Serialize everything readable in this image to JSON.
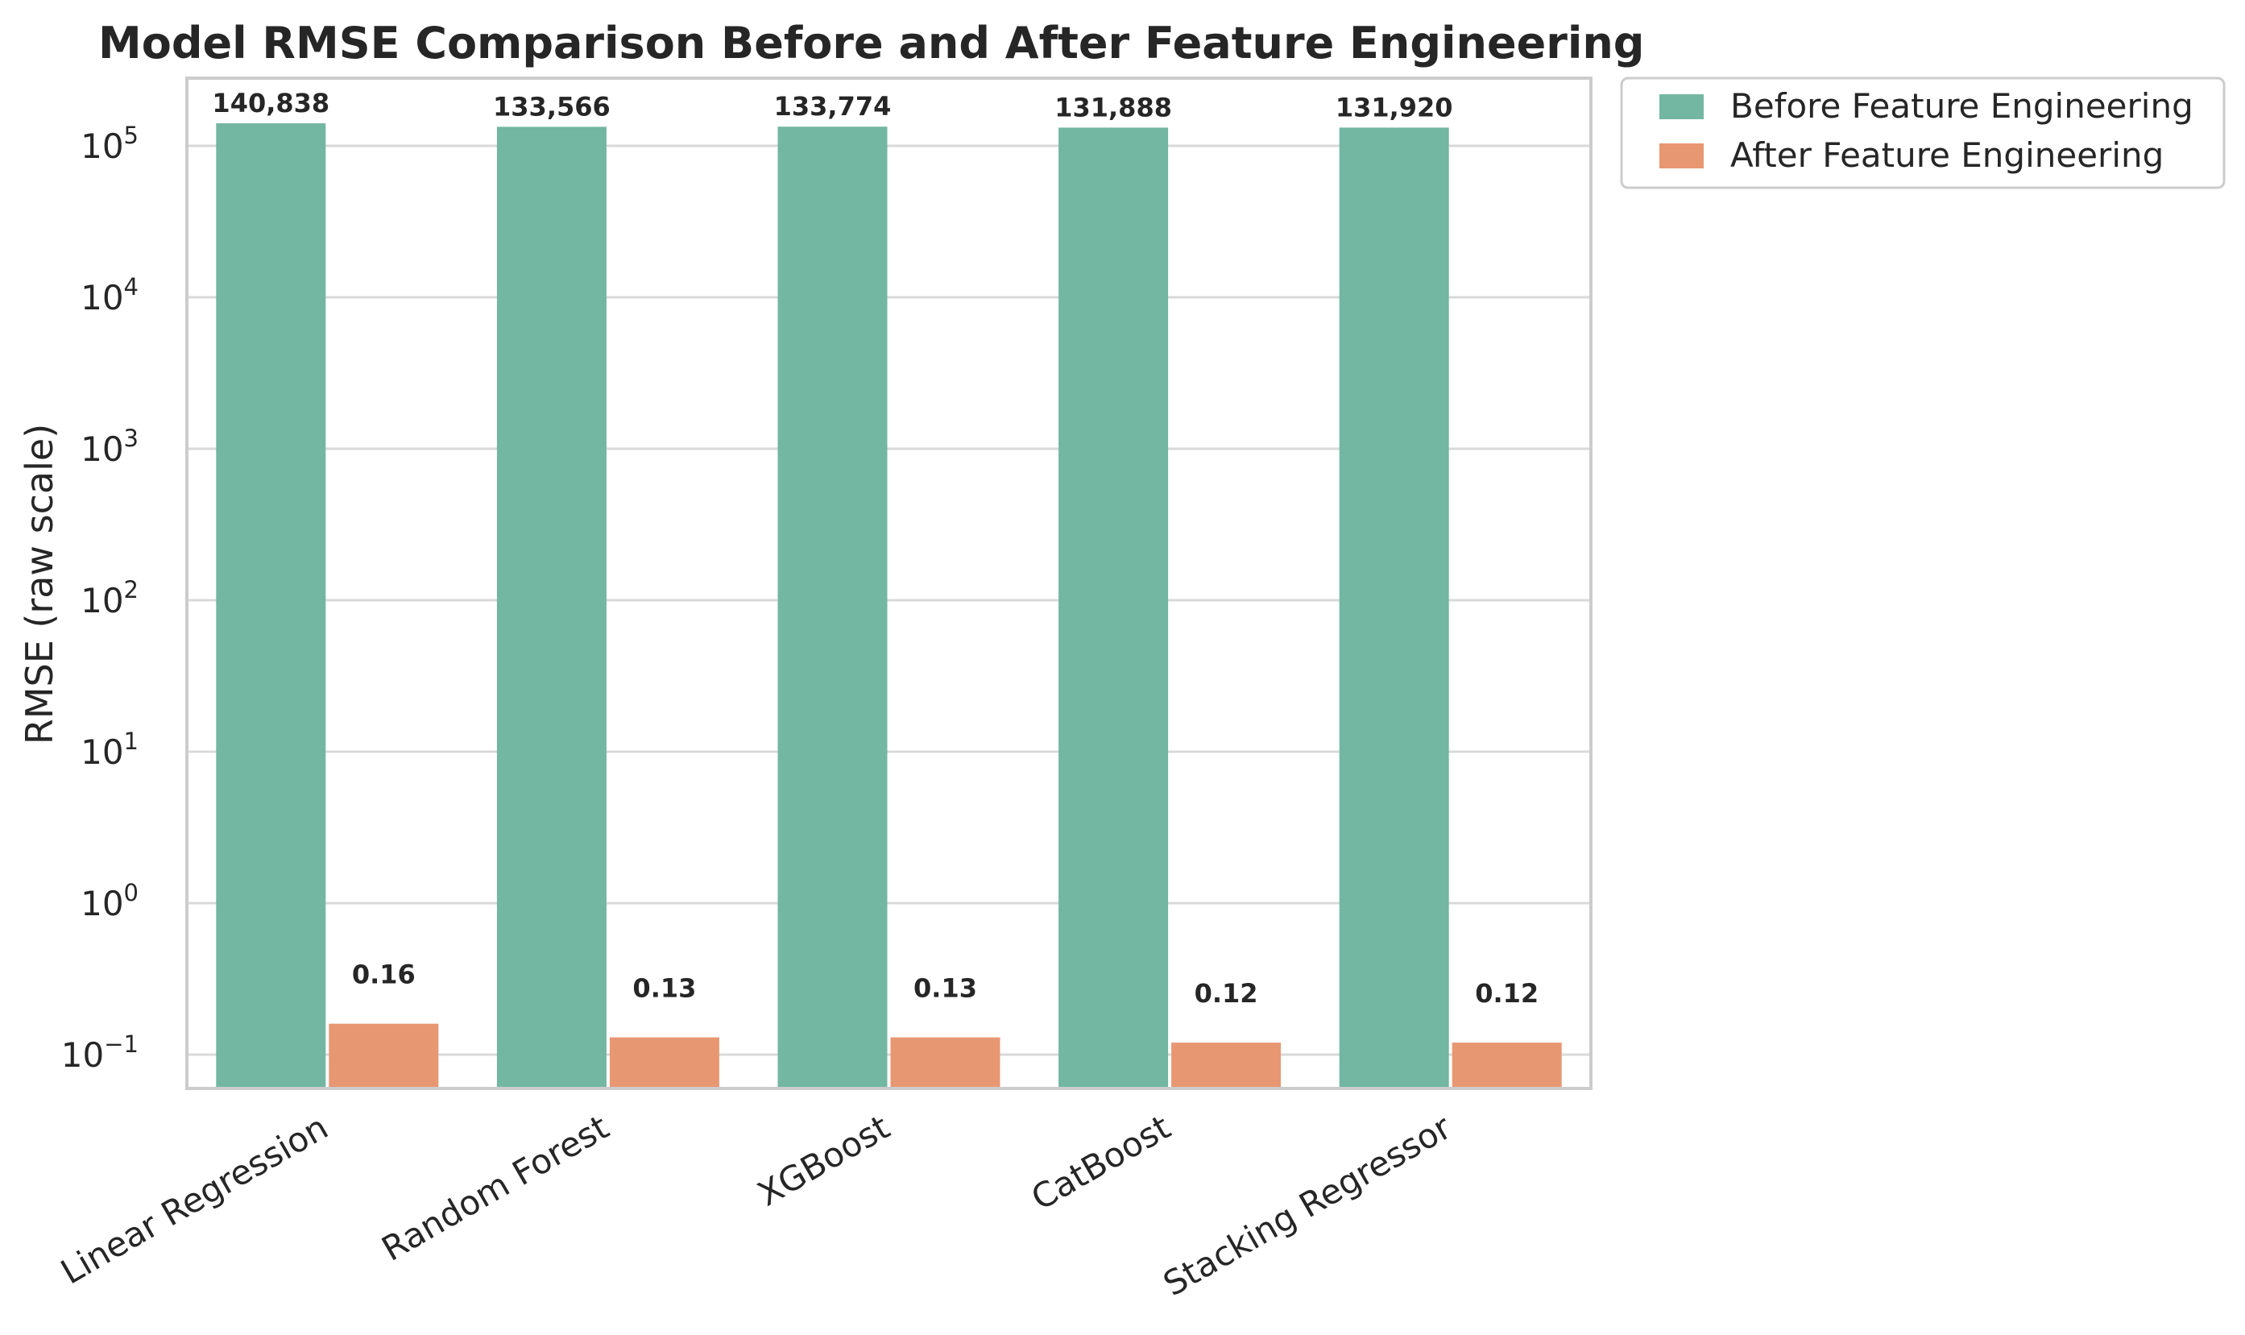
{
  "chart_data": {
    "type": "bar",
    "title": "Model RMSE Comparison Before and After Feature Engineering",
    "xlabel": "",
    "ylabel": "RMSE (raw scale)",
    "yscale": "log",
    "ylim": [
      0.058,
      250000
    ],
    "yticks": [
      {
        "value": 0.1,
        "base": "10",
        "exp": "−1"
      },
      {
        "value": 1,
        "base": "10",
        "exp": "0"
      },
      {
        "value": 10,
        "base": "10",
        "exp": "1"
      },
      {
        "value": 100,
        "base": "10",
        "exp": "2"
      },
      {
        "value": 1000,
        "base": "10",
        "exp": "3"
      },
      {
        "value": 10000,
        "base": "10",
        "exp": "4"
      },
      {
        "value": 100000,
        "base": "10",
        "exp": "5"
      }
    ],
    "grid": true,
    "categories": [
      "Linear Regression",
      "Random Forest",
      "XGBoost",
      "CatBoost",
      "Stacking Regressor"
    ],
    "series": [
      {
        "name": "Before Feature Engineering",
        "color": "#73b6a1",
        "values": [
          140838,
          133566,
          133774,
          131888,
          131920
        ],
        "labels": [
          "140,838",
          "133,566",
          "133,774",
          "131,888",
          "131,920"
        ]
      },
      {
        "name": "After Feature Engineering",
        "color": "#e89773",
        "values": [
          0.16,
          0.13,
          0.13,
          0.12,
          0.12
        ],
        "labels": [
          "0.16",
          "0.13",
          "0.13",
          "0.12",
          "0.12"
        ]
      }
    ],
    "legend_position": "outside-top-right"
  }
}
